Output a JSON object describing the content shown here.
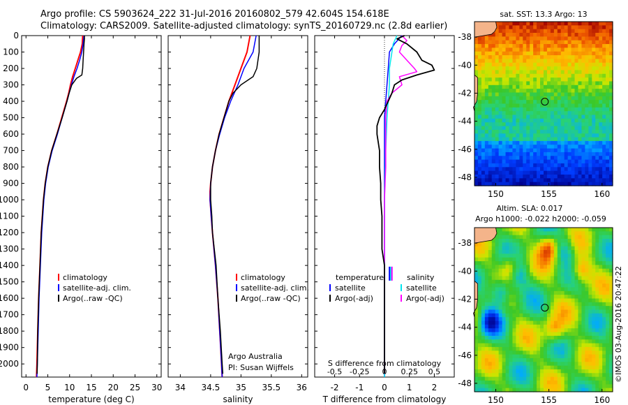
{
  "header": {
    "title_line1": "Argo profile: CS 5903624_222 31-Jul-2016 20160802_579 42.604S 154.618E",
    "title_line2": "Climatology: CARS2009. Satellite-adjusted climatology: synTS_20160729.nc (2.8d earlier)"
  },
  "footer": {
    "credit1": "Argo Australia",
    "credit2": "PI: Susan Wijffels",
    "watermark": "©IMOS 03-Aug-2016 20:47:22"
  },
  "colors": {
    "climatology": "#ff0000",
    "satellite": "#0000ff",
    "argo": "#000000",
    "satellite_s": "#00e5ee",
    "argo_s": "#ff00ff"
  },
  "chart_data": [
    {
      "id": "temperature",
      "type": "line",
      "xlabel": "temperature (deg C)",
      "ylabel": "depth (dbar)",
      "xlim": [
        -1,
        31
      ],
      "ylim": [
        2080,
        0
      ],
      "xticks": [
        0,
        5,
        10,
        15,
        20,
        25,
        30
      ],
      "xtick_labels": [
        "0",
        "5",
        "10",
        "15",
        "20",
        "25",
        "30"
      ],
      "yticks": [
        0,
        100,
        200,
        300,
        400,
        500,
        600,
        700,
        800,
        900,
        1000,
        1100,
        1200,
        1300,
        1400,
        1500,
        1600,
        1700,
        1800,
        1900,
        2000
      ],
      "ytick_labels": [
        "0",
        "100",
        "200",
        "300",
        "400",
        "500",
        "600",
        "700",
        "800",
        "900",
        "1000",
        "1100",
        "1200",
        "1300",
        "1400",
        "1500",
        "1600",
        "1700",
        "1800",
        "1900",
        "2000"
      ],
      "legend": [
        "climatology",
        "satellite-adj. clim.",
        "Argo(..raw -QC)"
      ],
      "series": [
        {
          "name": "climatology",
          "color": "#ff0000",
          "width": 2,
          "depth": [
            0,
            50,
            100,
            150,
            200,
            250,
            300,
            350,
            400,
            500,
            600,
            700,
            800,
            900,
            1000,
            1200,
            1400,
            1600,
            1800,
            2000,
            2080
          ],
          "values": [
            13.0,
            12.9,
            12.5,
            11.9,
            11.3,
            10.7,
            10.2,
            9.8,
            9.3,
            8.2,
            7.1,
            5.9,
            5.0,
            4.4,
            4.0,
            3.5,
            3.2,
            2.9,
            2.7,
            2.5,
            2.4
          ]
        },
        {
          "name": "satellite-adj. clim.",
          "color": "#0000ff",
          "width": 1.5,
          "depth": [
            0,
            50,
            100,
            150,
            200,
            250,
            300,
            350,
            400,
            500,
            600,
            700,
            800,
            900,
            1000,
            1200,
            1400,
            1600,
            1800,
            2000,
            2080
          ],
          "values": [
            13.3,
            13.1,
            12.8,
            12.3,
            11.7,
            11.0,
            10.4,
            9.9,
            9.4,
            8.3,
            7.2,
            6.0,
            5.1,
            4.5,
            4.1,
            3.6,
            3.3,
            3.0,
            2.8,
            2.6,
            2.5
          ]
        },
        {
          "name": "Argo(..raw -QC)",
          "color": "#000000",
          "width": 1.5,
          "depth": [
            0,
            20,
            50,
            100,
            150,
            200,
            240,
            260,
            300,
            350,
            400,
            500,
            600,
            700,
            800,
            900,
            1000,
            1200,
            1400,
            1600,
            1800,
            2000,
            2060
          ],
          "values": [
            13.4,
            13.4,
            13.3,
            13.2,
            13.1,
            13.0,
            12.8,
            11.6,
            10.5,
            9.9,
            9.4,
            8.3,
            7.1,
            5.9,
            5.0,
            4.4,
            4.0,
            3.5,
            3.2,
            2.9,
            2.7,
            2.6,
            2.55
          ]
        }
      ]
    },
    {
      "id": "salinity",
      "type": "line",
      "xlabel": "salinity",
      "ylabel": "depth (dbar)",
      "xlim": [
        33.8,
        36.1
      ],
      "ylim": [
        2080,
        0
      ],
      "xticks": [
        34,
        34.5,
        35,
        35.5,
        36
      ],
      "xtick_labels": [
        "34",
        "34.5",
        "35",
        "35.5",
        "36"
      ],
      "legend": [
        "climatology",
        "satellite-adj. clim.",
        "Argo(..raw -QC)"
      ],
      "series": [
        {
          "name": "climatology",
          "color": "#ff0000",
          "width": 2,
          "depth": [
            0,
            100,
            200,
            300,
            400,
            500,
            600,
            700,
            800,
            900,
            950,
            1000,
            1050,
            1100,
            1200,
            1400,
            1600,
            1800,
            2000,
            2080
          ],
          "values": [
            35.15,
            35.1,
            35.0,
            34.9,
            34.8,
            34.72,
            34.64,
            34.58,
            34.53,
            34.5,
            34.49,
            34.49,
            34.5,
            34.51,
            34.53,
            34.58,
            34.62,
            34.65,
            34.68,
            34.69
          ]
        },
        {
          "name": "satellite-adj. clim.",
          "color": "#0000ff",
          "width": 1.5,
          "depth": [
            0,
            100,
            200,
            300,
            400,
            500,
            600,
            700,
            800,
            900,
            1000,
            1100,
            1200,
            1400,
            1600,
            1800,
            2000,
            2080
          ],
          "values": [
            35.25,
            35.2,
            35.05,
            34.95,
            34.83,
            34.73,
            34.65,
            34.58,
            34.53,
            34.5,
            34.49,
            34.51,
            34.53,
            34.58,
            34.62,
            34.65,
            34.68,
            34.69
          ]
        },
        {
          "name": "Argo(..raw -QC)",
          "color": "#000000",
          "width": 1.5,
          "depth": [
            0,
            50,
            100,
            150,
            200,
            250,
            300,
            350,
            400,
            500,
            600,
            700,
            800,
            900,
            1000,
            1100,
            1200,
            1400,
            1600,
            1800,
            2000,
            2060
          ],
          "values": [
            35.3,
            35.3,
            35.3,
            35.28,
            35.26,
            35.2,
            35.0,
            34.87,
            34.8,
            34.72,
            34.64,
            34.58,
            34.53,
            34.5,
            34.5,
            34.52,
            34.53,
            34.59,
            34.62,
            34.66,
            34.69,
            34.7
          ]
        }
      ]
    },
    {
      "id": "difference",
      "type": "line",
      "xlabel": "T difference from climatology",
      "xlabel2": "S difference from climatology",
      "ylim": [
        2080,
        0
      ],
      "xlim": [
        -2.8,
        2.8
      ],
      "xticks": [
        -2,
        -1,
        0,
        1,
        2
      ],
      "xtick_labels": [
        "-2",
        "-1",
        "0",
        "1",
        "2"
      ],
      "s_ticks": [
        -0.5,
        -0.25,
        0,
        0.25,
        0.5
      ],
      "s_tick_labels": [
        "-0.5",
        "-0.25",
        "0",
        "0.25",
        "0.5"
      ],
      "legend_temperature": [
        "temperature",
        "satellite",
        "Argo(-adj)"
      ],
      "legend_salinity": [
        "salinity",
        "satellite",
        "Argo(-adj)"
      ],
      "series": [
        {
          "name": "T satellite",
          "color": "#0000ff",
          "width": 1.5,
          "depth": [
            0,
            50,
            100,
            200,
            300,
            400,
            500,
            700,
            1000,
            1500,
            2000,
            2080
          ],
          "values": [
            0.7,
            0.4,
            0.2,
            0.15,
            0.1,
            0.05,
            0.0,
            0.0,
            0.0,
            0.0,
            0.0,
            0.0
          ]
        },
        {
          "name": "S satellite",
          "color": "#00e5ee",
          "width": 1.5,
          "depth": [
            0,
            50,
            100,
            200,
            300,
            400,
            500,
            700,
            1000,
            1500,
            2000,
            2080
          ],
          "values": [
            0.5,
            0.35,
            0.3,
            0.2,
            0.2,
            0.15,
            0.1,
            0.05,
            0.0,
            0.0,
            0.0,
            0.0
          ]
        },
        {
          "name": "S Argo(-adj)",
          "color": "#ff00ff",
          "width": 1.5,
          "depth": [
            0,
            30,
            60,
            100,
            150,
            200,
            220,
            250,
            300,
            350,
            400,
            500,
            600,
            800,
            1000,
            1500,
            2000,
            2060
          ],
          "values": [
            0.7,
            0.9,
            0.7,
            0.6,
            0.9,
            1.2,
            1.3,
            0.6,
            0.7,
            0.3,
            0.1,
            0.05,
            0.05,
            0.05,
            0.0,
            0.0,
            0.0,
            0.0
          ]
        },
        {
          "name": "T Argo(-adj)",
          "color": "#000000",
          "width": 1.8,
          "depth": [
            0,
            20,
            50,
            100,
            150,
            180,
            210,
            240,
            270,
            300,
            350,
            400,
            450,
            500,
            550,
            600,
            700,
            800,
            900,
            1000,
            1100,
            1200,
            1300,
            1400,
            1500,
            1700,
            1900,
            2060
          ],
          "values": [
            0.8,
            0.5,
            0.9,
            1.3,
            1.5,
            1.9,
            2.0,
            1.3,
            0.7,
            0.4,
            0.3,
            0.15,
            0.0,
            -0.2,
            -0.3,
            -0.3,
            -0.2,
            -0.2,
            -0.15,
            -0.15,
            -0.1,
            -0.1,
            -0.1,
            0.0,
            0.0,
            0.0,
            0.0,
            0.0
          ]
        }
      ],
      "s_marks": [
        {
          "color": "#0000ff",
          "depth": 1450
        },
        {
          "color": "#00e5ee",
          "depth": 1450
        },
        {
          "color": "#ff00ff",
          "depth": 1450
        }
      ]
    },
    {
      "id": "sst_map",
      "type": "heatmap",
      "title": "sat. SST: 13.3 Argo: 13",
      "xlim": [
        148,
        161
      ],
      "ylim": [
        -48.6,
        -36.9
      ],
      "xticks": [
        150,
        155,
        160
      ],
      "xtick_labels": [
        "150",
        "155",
        "160"
      ],
      "yticks": [
        -38,
        -40,
        -42,
        -44,
        -46,
        -48
      ],
      "ytick_labels": [
        "-38",
        "-40",
        "-42",
        "-44",
        "-46",
        "-48"
      ],
      "argo_position": {
        "lon": 154.618,
        "lat": -42.604
      }
    },
    {
      "id": "sla_map",
      "type": "heatmap",
      "title": "Altim. SLA: 0.017",
      "title2": "Argo h1000: -0.022 h2000: -0.059",
      "xlim": [
        148,
        161
      ],
      "ylim": [
        -48.6,
        -36.9
      ],
      "xticks": [
        150,
        155,
        160
      ],
      "xtick_labels": [
        "150",
        "155",
        "160"
      ],
      "yticks": [
        -38,
        -40,
        -42,
        -44,
        -46,
        -48
      ],
      "ytick_labels": [
        "-38",
        "-40",
        "-42",
        "-44",
        "-46",
        "-48"
      ],
      "argo_position": {
        "lon": 154.618,
        "lat": -42.604
      }
    }
  ]
}
